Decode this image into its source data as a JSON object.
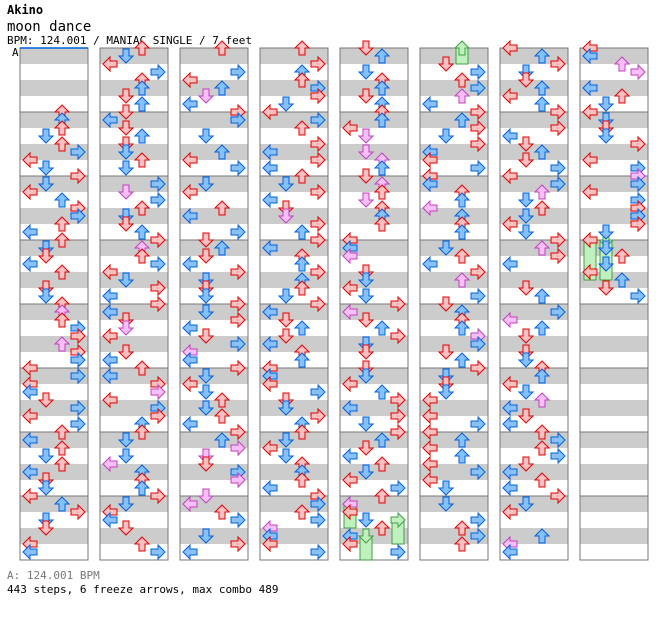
{
  "header": {
    "artist": "Akino",
    "title": "moon dance",
    "meta": "BPM: 124.001 / MANIAC SINGLE / 7 feet"
  },
  "bpm_marker": "A",
  "footer": {
    "bpm": "A: 124.001 BPM",
    "stats": "443 steps, 6 freeze arrows, max combo 489"
  },
  "colors": {
    "quarter": "#e00000",
    "quarter_fill": "#f8c0c0",
    "eighth": "#0060e0",
    "eighth_fill": "#88c0f8",
    "sixteenth": "#c040c0",
    "sixteenth_fill": "#f8c0f8",
    "freeze": "#40a040",
    "freeze_fill": "#c0f0c0",
    "stripe": "#cccccc",
    "bpm_line": "#0060e0"
  },
  "chart_data": {
    "type": "step-chart",
    "lanes": [
      "left",
      "down",
      "up",
      "right"
    ],
    "columns": 8,
    "measures_per_column": 8,
    "measures_with_notes": 60,
    "steps": 443,
    "freeze_arrows": 6,
    "max_combo": 489,
    "bpm": 124.001,
    "freezes": [
      {
        "measure": 40,
        "beat_start": 0,
        "beat_end": 1,
        "lane": "up"
      },
      {
        "measure": 59,
        "beat_start": 0,
        "beat_end": 2.5,
        "lane": "left"
      },
      {
        "measure": 59,
        "beat_start": 0,
        "beat_end": 2.5,
        "lane": "down"
      },
      {
        "measure": 39,
        "beat_start": 0.5,
        "beat_end": 2,
        "lane": "left"
      },
      {
        "measure": 39,
        "beat_start": 2.5,
        "beat_end": 4,
        "lane": "down"
      },
      {
        "measure": 39,
        "beat_start": 1.5,
        "beat_end": 3,
        "lane": "right"
      }
    ]
  }
}
